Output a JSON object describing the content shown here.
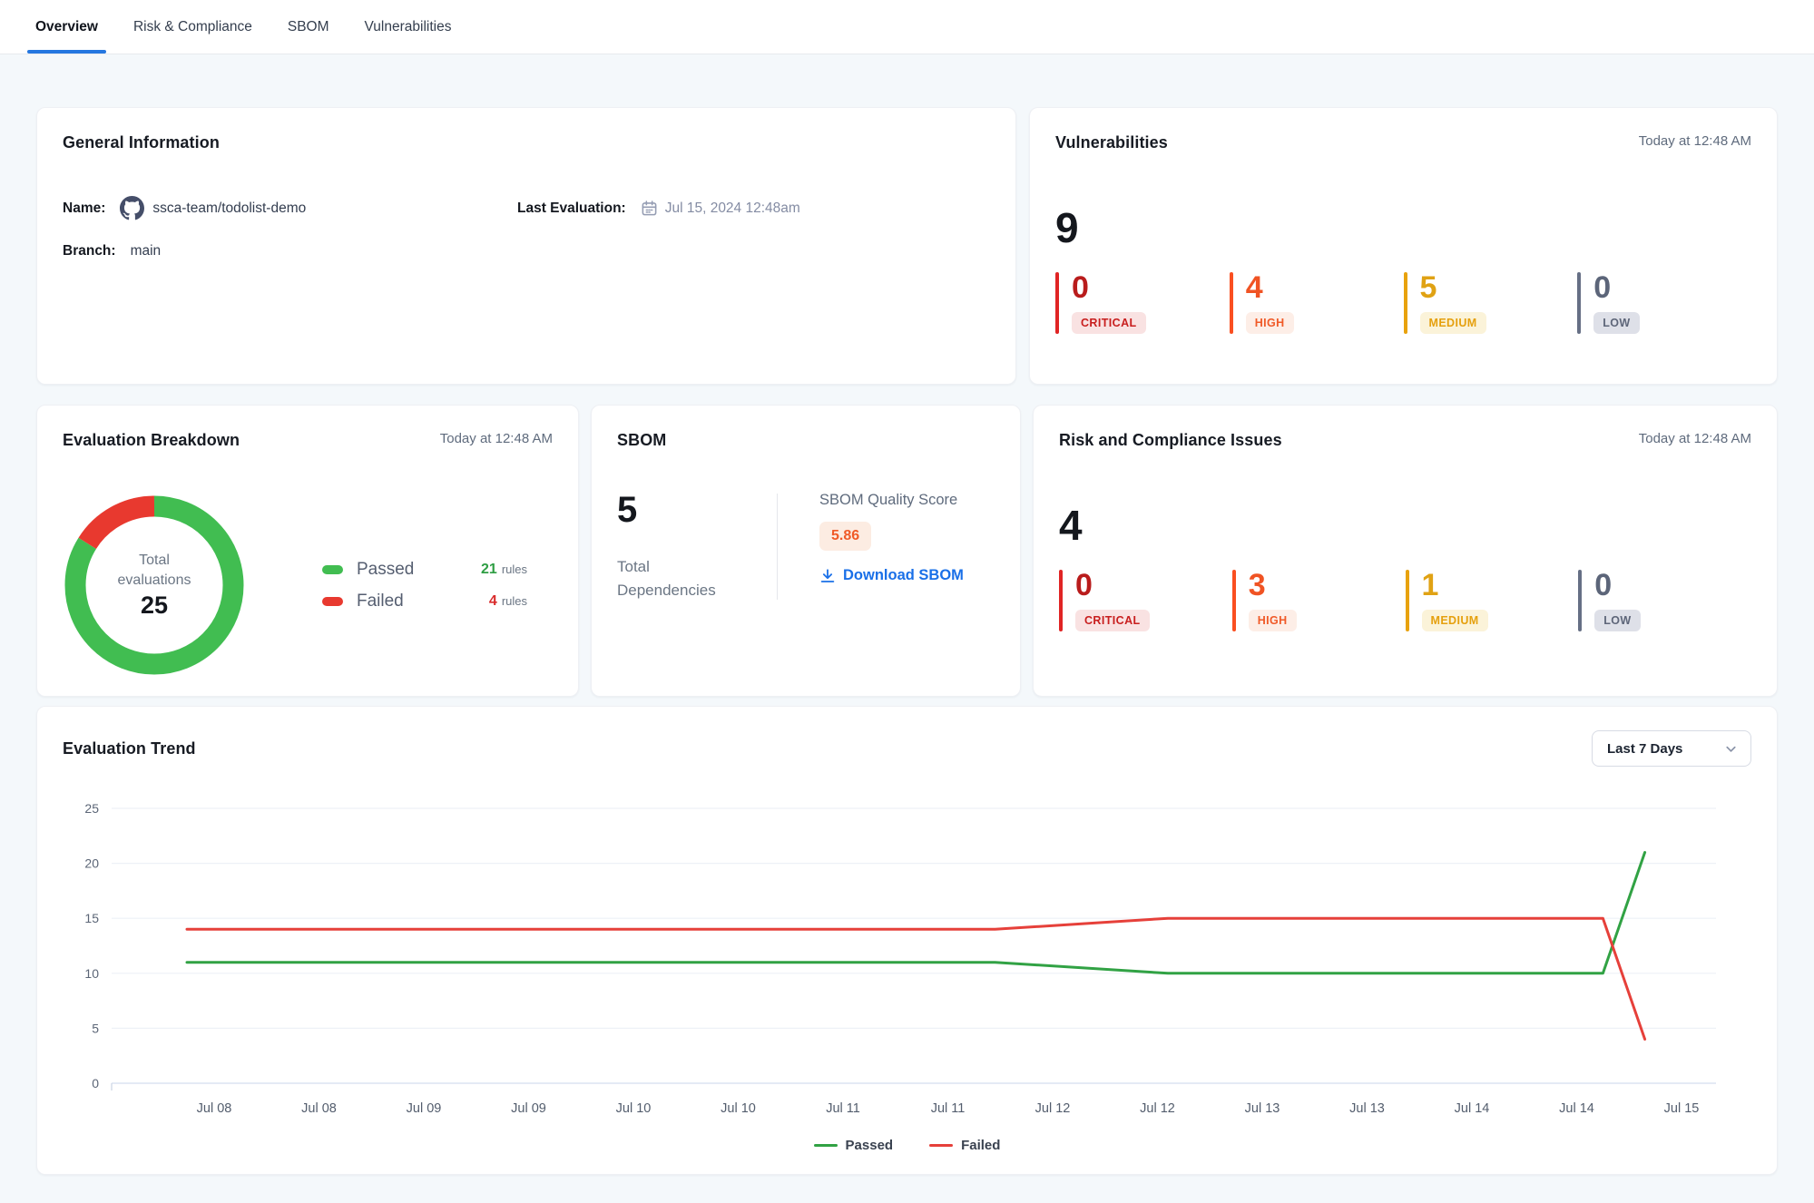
{
  "tabs": [
    {
      "label": "Overview",
      "active": true
    },
    {
      "label": "Risk & Compliance",
      "active": false
    },
    {
      "label": "SBOM",
      "active": false
    },
    {
      "label": "Vulnerabilities",
      "active": false
    }
  ],
  "general_info": {
    "title": "General Information",
    "name_label": "Name:",
    "name_value": "ssca-team/todolist-demo",
    "branch_label": "Branch:",
    "branch_value": "main",
    "last_eval_label": "Last Evaluation:",
    "last_eval_value": "Jul 15, 2024 12:48am"
  },
  "vulnerabilities": {
    "title": "Vulnerabilities",
    "timestamp": "Today at 12:48 AM",
    "total": "9",
    "severities": [
      {
        "variant": "critical",
        "count": "0",
        "label": "CRITICAL"
      },
      {
        "variant": "high",
        "count": "4",
        "label": "HIGH"
      },
      {
        "variant": "medium",
        "count": "5",
        "label": "MEDIUM"
      },
      {
        "variant": "low",
        "count": "0",
        "label": "LOW"
      }
    ]
  },
  "evaluation_breakdown": {
    "title": "Evaluation Breakdown",
    "timestamp": "Today at 12:48 AM",
    "center_line1": "Total",
    "center_line2": "evaluations",
    "center_value": "25",
    "legend": [
      {
        "label": "Passed",
        "value": "21",
        "unit": "rules",
        "color": "#41bd51",
        "value_color": "#2f9e44"
      },
      {
        "label": "Failed",
        "value": "4",
        "unit": "rules",
        "color": "#e8392f",
        "value_color": "#d92c2c"
      }
    ]
  },
  "sbom": {
    "title": "SBOM",
    "total": "5",
    "total_label": "Total Dependencies",
    "quality_label": "SBOM Quality Score",
    "quality_value": "5.86",
    "download_label": "Download SBOM"
  },
  "risk_compliance": {
    "title": "Risk and Compliance Issues",
    "timestamp": "Today at 12:48 AM",
    "total": "4",
    "severities": [
      {
        "variant": "critical",
        "count": "0",
        "label": "CRITICAL"
      },
      {
        "variant": "high",
        "count": "3",
        "label": "HIGH"
      },
      {
        "variant": "medium",
        "count": "1",
        "label": "MEDIUM"
      },
      {
        "variant": "low",
        "count": "0",
        "label": "LOW"
      }
    ]
  },
  "evaluation_trend": {
    "title": "Evaluation Trend",
    "range_label": "Last 7 Days"
  },
  "chart_data": {
    "donut": {
      "type": "pie",
      "title": "Evaluation Breakdown",
      "total": 25,
      "segments": [
        {
          "label": "Passed",
          "value": 21,
          "unit": "rules",
          "color": "#41bd51"
        },
        {
          "label": "Failed",
          "value": 4,
          "unit": "rules",
          "color": "#e8392f"
        }
      ]
    },
    "trend": {
      "type": "line",
      "title": "Evaluation Trend",
      "x_tick_labels": [
        "Jul 08",
        "Jul 08",
        "Jul 09",
        "Jul 09",
        "Jul 10",
        "Jul 10",
        "Jul 11",
        "Jul 11",
        "Jul 12",
        "Jul 12",
        "Jul 13",
        "Jul 13",
        "Jul 14",
        "Jul 14",
        "Jul 15"
      ],
      "y_ticks": [
        0,
        5,
        10,
        15,
        20,
        25
      ],
      "ylim": [
        0,
        25
      ],
      "grid": true,
      "legend_position": "bottom",
      "series": [
        {
          "name": "Passed",
          "color": "#31a244",
          "points": [
            [
              -0.26,
              11
            ],
            [
              7.45,
              11
            ],
            [
              9.1,
              10
            ],
            [
              13.25,
              10
            ],
            [
              13.65,
              21
            ]
          ]
        },
        {
          "name": "Failed",
          "color": "#e6403a",
          "points": [
            [
              -0.26,
              14
            ],
            [
              7.45,
              14
            ],
            [
              9.1,
              15
            ],
            [
              13.25,
              15
            ],
            [
              13.65,
              4
            ]
          ]
        }
      ]
    }
  },
  "colors": {
    "accent_blue": "#1a70e8",
    "tab_underline": "#2577e0",
    "score_badge": {
      "bg": "#fcece2",
      "text": "#f05a28"
    },
    "severity": {
      "critical": {
        "bar": "#e02424",
        "number": "#b91c1c",
        "badge_bg": "#f9e2e2",
        "badge_text": "#c81e1e"
      },
      "high": {
        "bar": "#fa4f21",
        "number": "#f05323",
        "badge_bg": "#fdeee7",
        "badge_text": "#f05a28"
      },
      "medium": {
        "bar": "#e8a20d",
        "number": "#e0a214",
        "badge_bg": "#fbf3d9",
        "badge_text": "#e5a00e"
      },
      "low": {
        "bar": "#666f85",
        "number": "#5c6579",
        "badge_bg": "#dee0e8",
        "badge_text": "#5e6679"
      }
    }
  }
}
